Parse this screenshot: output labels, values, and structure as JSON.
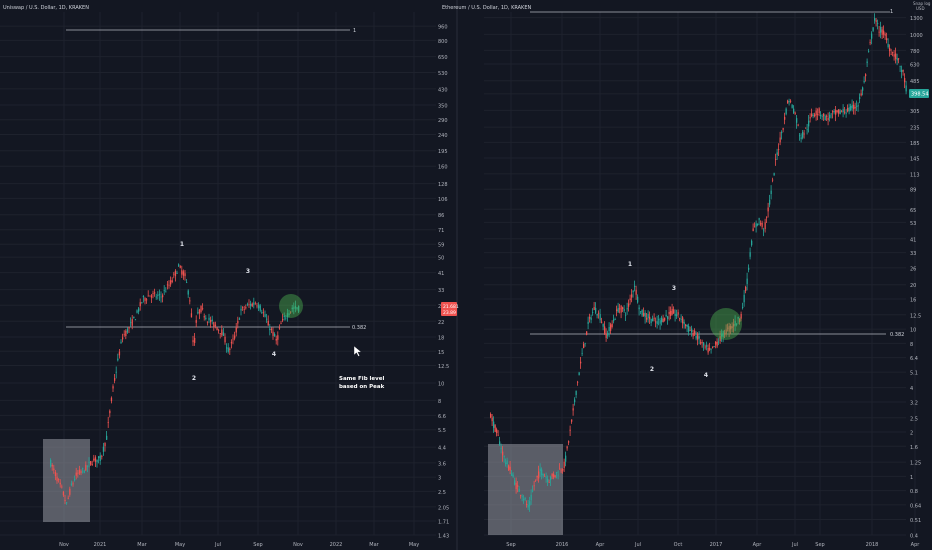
{
  "left_panel": {
    "header": "Uniswap / U.S. Dollar, 1D, KRAKEN",
    "price_badge": {
      "value": "21.681",
      "sub": "23.89",
      "color": "#ef5350"
    },
    "fib_labels": {
      "top": "1",
      "mid": "0.382"
    },
    "wave_labels": [
      "1",
      "2",
      "3",
      "4"
    ],
    "annotation": [
      "Same Fib level",
      "based on Peak"
    ]
  },
  "right_panel": {
    "header": "Ethereum / U.S. Dollar, 1D, KRAKEN",
    "corner_label": [
      "Snap log",
      "USD"
    ],
    "price_badge": {
      "value": "398.54",
      "color": "#26a69a"
    },
    "fib_labels": {
      "top": "1",
      "mid": "0.382"
    },
    "wave_labels": [
      "1",
      "2",
      "3",
      "4"
    ]
  },
  "colors": {
    "background": "#131722",
    "up": "#26a69a",
    "down": "#ef5350",
    "grid": "#1e222d",
    "highlight": "#4caf50",
    "box": "#9598a1"
  },
  "chart_data": [
    {
      "type": "candlestick",
      "title": "Uniswap / U.S. Dollar, 1D, KRAKEN",
      "scale": "log",
      "y_ticks": [
        1.43,
        1.71,
        2.05,
        2.5,
        3,
        3.6,
        4.4,
        5.5,
        6.6,
        8,
        10,
        12.5,
        15,
        18,
        22,
        27,
        33,
        41,
        50,
        59,
        71,
        86,
        106,
        128,
        160,
        195,
        240,
        290,
        350,
        430,
        530,
        650,
        800,
        960
      ],
      "x_ticks": [
        "Nov",
        "2021",
        "Mar",
        "May",
        "Jul",
        "Sep",
        "Nov",
        "2022",
        "Mar",
        "May"
      ],
      "series": [
        {
          "x": "Nov",
          "y": 3.4
        },
        {
          "x": "2021",
          "y": 5.5
        },
        {
          "x": "Mar",
          "y": 28
        },
        {
          "x": "May",
          "y": 44
        },
        {
          "x": "Jul",
          "y": 15
        },
        {
          "x": "Jul",
          "y": 27
        },
        {
          "x": "Sep",
          "y": 18
        },
        {
          "x": "Sep",
          "y": 26
        }
      ],
      "fib_levels": [
        {
          "label": "1",
          "value": 1100
        },
        {
          "label": "0.382",
          "value": 19.5
        }
      ],
      "waves": [
        {
          "label": "1",
          "value": 44
        },
        {
          "label": "2",
          "value": 13.5
        },
        {
          "label": "3",
          "value": 29
        },
        {
          "label": "4",
          "value": 17
        }
      ]
    },
    {
      "type": "candlestick",
      "title": "Ethereum / U.S. Dollar, 1D, KRAKEN",
      "scale": "log",
      "y_ticks": [
        0.4,
        0.51,
        0.64,
        0.8,
        1,
        1.25,
        1.6,
        2,
        2.5,
        3.2,
        4,
        5.1,
        6.4,
        8,
        10,
        12.5,
        16,
        20,
        26,
        33,
        41,
        53,
        65,
        89,
        113,
        145,
        185,
        235,
        305,
        395,
        485,
        630,
        780,
        1000,
        1300
      ],
      "x_ticks": [
        "Sep",
        "2016",
        "Apr",
        "Jul",
        "Oct",
        "2017",
        "Apr",
        "Jul",
        "Sep",
        "2018",
        "Apr"
      ],
      "series": [
        {
          "x": "Sep",
          "y": 1.0
        },
        {
          "x": "2016",
          "y": 2.0
        },
        {
          "x": "Apr",
          "y": 12
        },
        {
          "x": "Jul",
          "y": 14
        },
        {
          "x": "Oct",
          "y": 11
        },
        {
          "x": "2017",
          "y": 10
        },
        {
          "x": "Apr",
          "y": 50
        },
        {
          "x": "Jul",
          "y": 230
        },
        {
          "x": "Sep",
          "y": 300
        },
        {
          "x": "2018",
          "y": 1100
        },
        {
          "x": "Apr",
          "y": 398.54
        }
      ],
      "fib_levels": [
        {
          "label": "1",
          "value": 1420
        },
        {
          "label": "0.382",
          "value": 9.2
        }
      ],
      "waves": [
        {
          "label": "1",
          "value": 20
        },
        {
          "label": "2",
          "value": 7.5
        },
        {
          "label": "3",
          "value": 16
        },
        {
          "label": "4",
          "value": 6.4
        }
      ]
    }
  ]
}
